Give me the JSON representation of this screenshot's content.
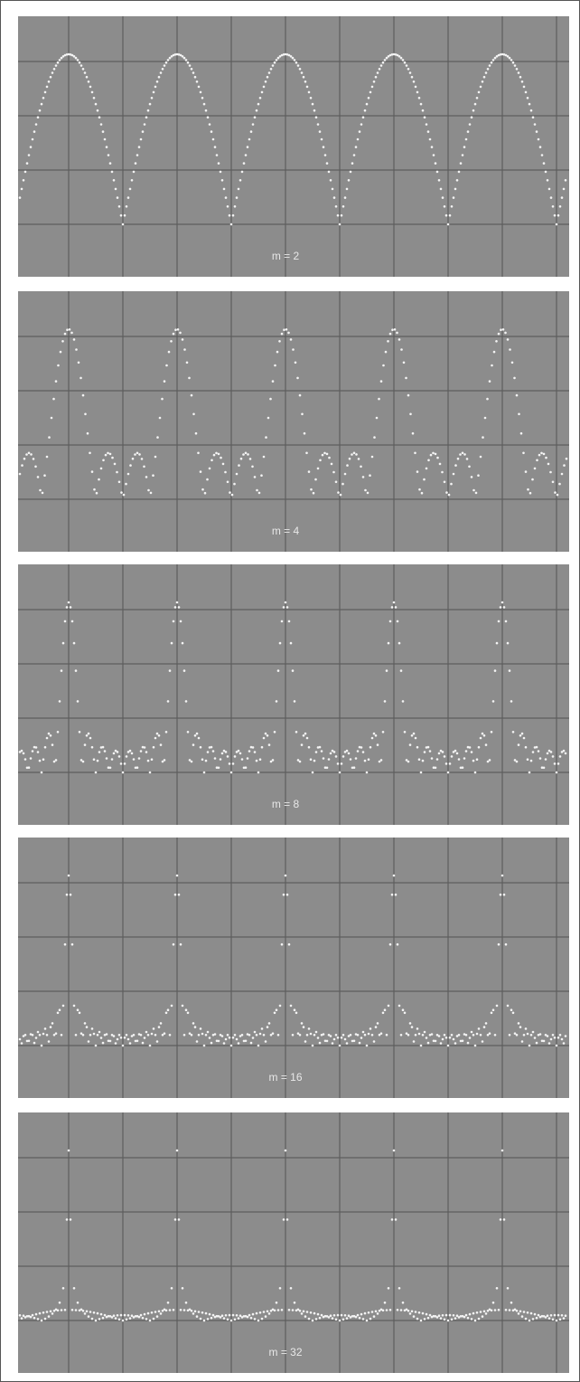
{
  "panels": [
    {
      "label": "m = 2"
    },
    {
      "label": "m = 4"
    },
    {
      "label": "m = 8"
    },
    {
      "label": "m = 16"
    },
    {
      "label": "m = 32"
    }
  ]
}
